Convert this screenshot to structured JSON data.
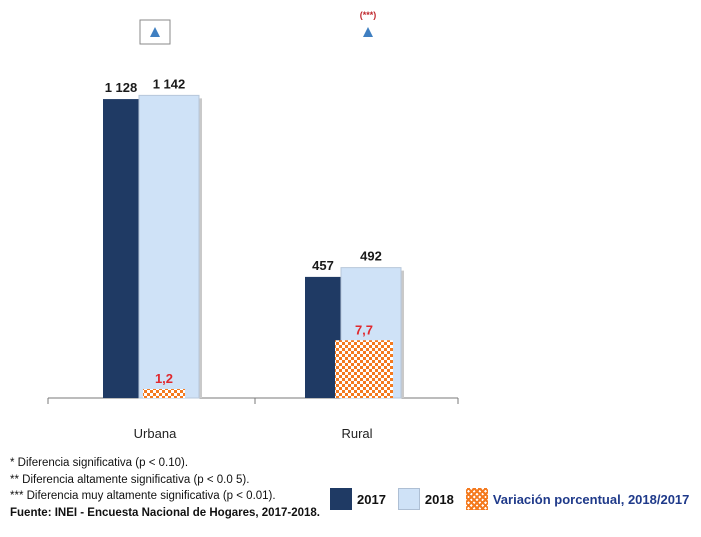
{
  "chart_data": {
    "type": "bar",
    "categories": [
      "Urbana",
      "Rural"
    ],
    "series": [
      {
        "name": "2017",
        "values": [
          1128,
          457
        ],
        "labels": [
          "1 128",
          "457"
        ],
        "color": "#1f3a64"
      },
      {
        "name": "2018",
        "values": [
          1142,
          492
        ],
        "labels": [
          "1 142",
          "492"
        ],
        "color": "#cfe2f7"
      }
    ],
    "variation": {
      "name": "Variación porcentual, 2018/2017",
      "values": [
        1.2,
        7.7
      ],
      "labels": [
        "1,2",
        "7,7"
      ],
      "color": "#f47a1f"
    },
    "significance": [
      {
        "icon": "triangle-up-icon",
        "mark": "",
        "boxed": true
      },
      {
        "icon": "triangle-up-icon",
        "mark": "(***)",
        "boxed": false
      }
    ],
    "ylim": [
      0,
      1200
    ]
  },
  "footnotes": {
    "note1": "* Diferencia significativa (p < 0.10).",
    "note2": "** Diferencia altamente significativa (p < 0.0 5).",
    "note3": "*** Diferencia muy altamente significativa (p < 0.01).",
    "source": "Fuente: INEI - Encuesta Nacional de Hogares, 2017-2018."
  },
  "legend": {
    "item_2017": "2017",
    "item_2018": "2018",
    "item_var": "Variación porcentual, 2018/2017"
  }
}
